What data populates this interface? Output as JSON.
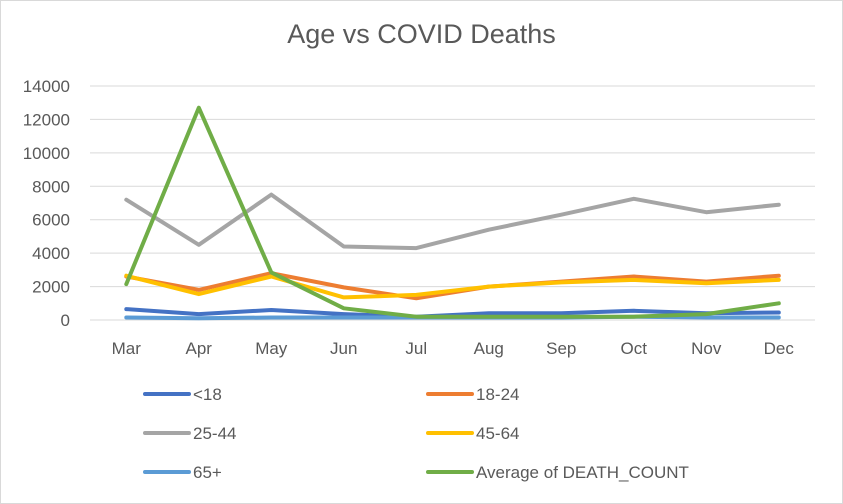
{
  "chart_data": {
    "type": "line",
    "title": "Age vs COVID Deaths",
    "categories": [
      "Mar",
      "Apr",
      "May",
      "Jun",
      "Jul",
      "Aug",
      "Sep",
      "Oct",
      "Nov",
      "Dec"
    ],
    "ylim": [
      0,
      14000
    ],
    "yticks": [
      0,
      2000,
      4000,
      6000,
      8000,
      10000,
      12000,
      14000
    ],
    "grid": true,
    "legend_position": "bottom",
    "series": [
      {
        "name": "<18",
        "color": "#4472c4",
        "values": [
          650,
          350,
          600,
          350,
          200,
          400,
          400,
          550,
          400,
          450
        ]
      },
      {
        "name": "18-24",
        "color": "#ed7d31",
        "values": [
          2600,
          1800,
          2800,
          1950,
          1300,
          2000,
          2300,
          2600,
          2300,
          2650
        ]
      },
      {
        "name": "25-44",
        "color": "#a5a5a5",
        "values": [
          7200,
          4500,
          7500,
          4400,
          4300,
          5400,
          6300,
          7250,
          6450,
          6900
        ]
      },
      {
        "name": "45-64",
        "color": "#ffc000",
        "values": [
          2650,
          1550,
          2600,
          1350,
          1500,
          2000,
          2250,
          2400,
          2200,
          2400
        ]
      },
      {
        "name": "65+",
        "color": "#5b9bd5",
        "values": [
          150,
          100,
          150,
          150,
          150,
          150,
          150,
          200,
          150,
          150
        ]
      },
      {
        "name": "Average of DEATH_COUNT",
        "color": "#70ad47",
        "values": [
          2150,
          12700,
          2850,
          700,
          200,
          200,
          200,
          200,
          350,
          1000
        ]
      }
    ]
  }
}
